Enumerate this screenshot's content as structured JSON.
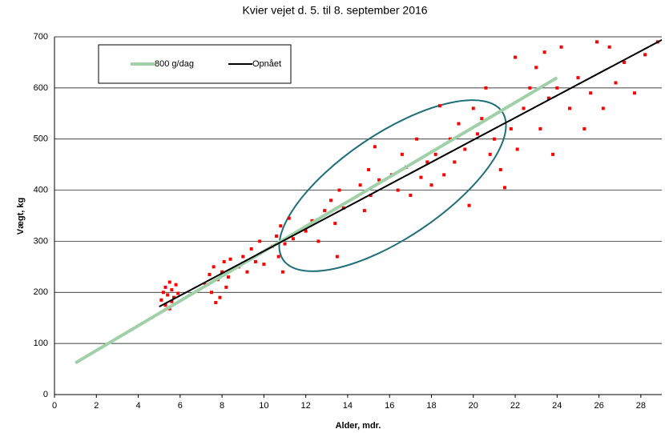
{
  "chart_data": {
    "type": "scatter",
    "title": "Kvier vejet d. 5. til 8. september 2016",
    "x_label": "Alder, mdr.",
    "y_label": "Vægt, kg",
    "xlim": [
      0,
      29
    ],
    "ylim": [
      0,
      700
    ],
    "xticks": [
      0,
      2,
      4,
      6,
      8,
      10,
      12,
      14,
      16,
      18,
      20,
      22,
      24,
      26,
      28
    ],
    "yticks": [
      0,
      100,
      200,
      300,
      400,
      500,
      600,
      700
    ],
    "grid": true,
    "lines": [
      {
        "name": "800 g/dag",
        "color": "#9fd0a8",
        "x": [
          1,
          24
        ],
        "values": [
          62,
          620
        ]
      },
      {
        "name": "Opnået",
        "color": "#000000",
        "x": [
          5,
          29
        ],
        "values": [
          172,
          694
        ]
      }
    ],
    "points": {
      "color": "#ff0000",
      "x": [
        5.1,
        5.2,
        5.3,
        5.3,
        5.4,
        5.5,
        5.5,
        5.6,
        5.7,
        5.8,
        5.9,
        5.6,
        7.2,
        7.4,
        7.5,
        7.6,
        7.8,
        7.9,
        8.0,
        8.1,
        8.2,
        8.3,
        8.4,
        7.7,
        8.8,
        9.0,
        9.2,
        9.4,
        9.6,
        9.8,
        10.0,
        10.4,
        10.6,
        10.7,
        10.8,
        11.0,
        11.2,
        11.4,
        10.9,
        12.0,
        12.3,
        12.6,
        12.9,
        13.2,
        13.4,
        13.6,
        13.8,
        13.5,
        14.6,
        14.8,
        15.0,
        15.1,
        15.3,
        15.5,
        16.1,
        16.4,
        16.6,
        16.8,
        17.0,
        17.3,
        17.5,
        17.8,
        18.0,
        18.2,
        18.4,
        18.6,
        18.9,
        19.1,
        19.3,
        19.6,
        19.8,
        20.0,
        20.2,
        20.4,
        20.6,
        20.8,
        21.0,
        21.3,
        21.5,
        21.8,
        22.0,
        22.1,
        22.4,
        22.7,
        23.0,
        23.2,
        23.4,
        23.6,
        23.8,
        24.0,
        24.2,
        24.6,
        25.0,
        25.3,
        25.6,
        25.9,
        26.2,
        26.5,
        26.8,
        27.2,
        27.7,
        28.2,
        28.8
      ],
      "y": [
        185,
        200,
        175,
        210,
        195,
        220,
        168,
        205,
        190,
        215,
        198,
        182,
        215,
        235,
        200,
        250,
        225,
        190,
        240,
        260,
        210,
        230,
        265,
        180,
        250,
        270,
        240,
        285,
        260,
        300,
        255,
        290,
        310,
        270,
        330,
        295,
        345,
        305,
        240,
        320,
        340,
        300,
        360,
        380,
        335,
        400,
        365,
        270,
        410,
        360,
        440,
        390,
        485,
        420,
        430,
        400,
        470,
        445,
        390,
        500,
        425,
        455,
        410,
        470,
        565,
        430,
        500,
        455,
        530,
        480,
        370,
        560,
        510,
        540,
        600,
        470,
        500,
        440,
        405,
        520,
        660,
        480,
        560,
        600,
        640,
        520,
        670,
        580,
        470,
        600,
        680,
        560,
        620,
        520,
        590,
        690,
        560,
        680,
        610,
        650,
        590,
        665,
        690
      ]
    }
  }
}
